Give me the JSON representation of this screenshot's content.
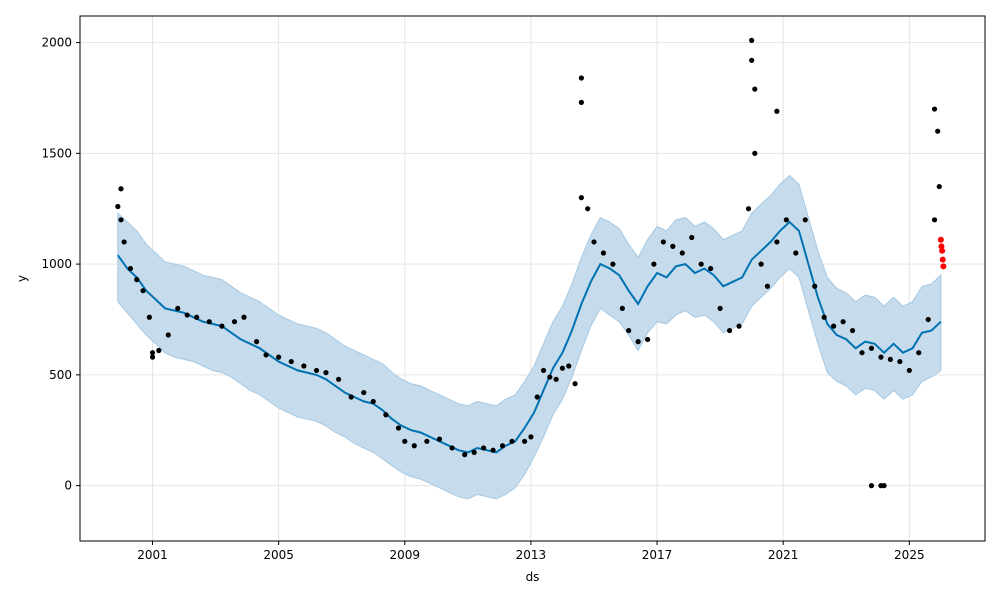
{
  "chart_data": {
    "type": "scatter",
    "xlabel": "ds",
    "ylabel": "y",
    "xlim": [
      1998.7,
      2027.4
    ],
    "ylim": [
      -250,
      2120
    ],
    "grid": true,
    "x_ticks": [
      2001,
      2005,
      2009,
      2013,
      2017,
      2021,
      2025
    ],
    "x_tick_labels": [
      "2001",
      "2005",
      "2009",
      "2013",
      "2017",
      "2021",
      "2025"
    ],
    "y_ticks": [
      0,
      500,
      1000,
      1500,
      2000
    ],
    "y_tick_labels": [
      "0",
      "500",
      "1000",
      "1500",
      "2000"
    ],
    "colors": {
      "observed": "#000000",
      "forecast_line": "#0072B2",
      "interval_fill": "#c6dcec",
      "interval_edge": "#a6c8e2",
      "highlight": "#ff0000",
      "grid": "#e5e5e5"
    },
    "series": [
      {
        "role": "forecast",
        "x": [
          1999.9,
          2000.2,
          2000.5,
          2000.8,
          2001.1,
          2001.4,
          2001.7,
          2002.0,
          2002.3,
          2002.6,
          2002.9,
          2003.2,
          2003.5,
          2003.8,
          2004.1,
          2004.4,
          2004.7,
          2005.0,
          2005.3,
          2005.6,
          2005.9,
          2006.2,
          2006.5,
          2006.8,
          2007.1,
          2007.4,
          2007.7,
          2008.0,
          2008.3,
          2008.6,
          2008.9,
          2009.2,
          2009.5,
          2009.8,
          2010.1,
          2010.4,
          2010.7,
          2011.0,
          2011.3,
          2011.6,
          2011.9,
          2012.2,
          2012.5,
          2012.8,
          2013.1,
          2013.4,
          2013.7,
          2014.0,
          2014.3,
          2014.6,
          2014.9,
          2015.2,
          2015.5,
          2015.8,
          2016.1,
          2016.4,
          2016.7,
          2017.0,
          2017.3,
          2017.6,
          2017.9,
          2018.2,
          2018.5,
          2018.8,
          2019.1,
          2019.4,
          2019.7,
          2020.0,
          2020.3,
          2020.6,
          2020.9,
          2021.2,
          2021.5,
          2021.8,
          2022.1,
          2022.4,
          2022.7,
          2023.0,
          2023.3,
          2023.6,
          2023.9,
          2024.2,
          2024.5,
          2024.8,
          2025.1,
          2025.4,
          2025.7,
          2026.0
        ],
        "yhat": [
          1040,
          980,
          940,
          880,
          840,
          800,
          790,
          780,
          760,
          740,
          730,
          720,
          690,
          660,
          640,
          620,
          590,
          560,
          540,
          520,
          510,
          500,
          480,
          450,
          420,
          400,
          380,
          370,
          340,
          300,
          270,
          250,
          240,
          220,
          200,
          180,
          160,
          150,
          170,
          160,
          150,
          180,
          200,
          260,
          330,
          430,
          530,
          600,
          700,
          820,
          920,
          1000,
          980,
          950,
          880,
          820,
          900,
          960,
          940,
          990,
          1000,
          960,
          980,
          950,
          900,
          920,
          940,
          1020,
          1060,
          1100,
          1150,
          1190,
          1150,
          1000,
          850,
          730,
          680,
          660,
          620,
          650,
          640,
          600,
          640,
          600,
          620,
          690,
          700,
          740
        ],
        "lower": [
          830,
          780,
          730,
          680,
          640,
          600,
          580,
          570,
          560,
          540,
          520,
          510,
          490,
          460,
          430,
          410,
          380,
          350,
          330,
          310,
          300,
          290,
          270,
          240,
          220,
          190,
          170,
          150,
          120,
          90,
          60,
          40,
          30,
          10,
          -10,
          -30,
          -50,
          -60,
          -40,
          -50,
          -60,
          -40,
          -10,
          50,
          130,
          220,
          320,
          390,
          490,
          610,
          720,
          800,
          770,
          740,
          680,
          610,
          690,
          740,
          730,
          770,
          790,
          760,
          770,
          740,
          690,
          710,
          730,
          810,
          850,
          890,
          940,
          980,
          940,
          790,
          640,
          510,
          470,
          450,
          410,
          440,
          430,
          390,
          430,
          390,
          410,
          470,
          490,
          520
        ],
        "upper": [
          1230,
          1190,
          1150,
          1090,
          1050,
          1010,
          1000,
          990,
          970,
          950,
          940,
          930,
          900,
          870,
          850,
          830,
          800,
          770,
          750,
          730,
          720,
          710,
          690,
          660,
          630,
          610,
          590,
          570,
          550,
          510,
          480,
          460,
          450,
          430,
          410,
          390,
          370,
          360,
          380,
          370,
          360,
          390,
          410,
          470,
          540,
          640,
          740,
          810,
          910,
          1030,
          1130,
          1210,
          1190,
          1160,
          1090,
          1030,
          1110,
          1170,
          1150,
          1200,
          1210,
          1170,
          1190,
          1160,
          1110,
          1130,
          1150,
          1230,
          1270,
          1310,
          1360,
          1400,
          1360,
          1210,
          1060,
          940,
          890,
          870,
          830,
          860,
          850,
          810,
          850,
          810,
          830,
          900,
          910,
          950
        ]
      },
      {
        "role": "observed",
        "x": [
          1999.9,
          2000.0,
          2000.1,
          2000.3,
          2000.5,
          2000.7,
          2000.9,
          2001.0,
          2001.2,
          2001.5,
          2001.8,
          2002.1,
          2002.4,
          2002.8,
          2003.2,
          2003.6,
          2003.9,
          2004.3,
          2004.6,
          2005.0,
          2005.4,
          2005.8,
          2006.2,
          2006.5,
          2006.9,
          2007.3,
          2007.7,
          2008.0,
          2008.4,
          2008.8,
          2009.0,
          2009.3,
          2009.7,
          2010.1,
          2010.5,
          2010.9,
          2011.2,
          2011.5,
          2011.8,
          2012.1,
          2012.4,
          2012.8,
          2013.0,
          2013.2,
          2013.4,
          2013.6,
          2013.8,
          2014.0,
          2014.2,
          2014.4,
          2014.6,
          2014.8,
          2015.0,
          2015.3,
          2015.6,
          2015.9,
          2016.1,
          2016.4,
          2016.7,
          2016.9,
          2017.2,
          2017.5,
          2017.8,
          2018.1,
          2018.4,
          2018.7,
          2019.0,
          2019.3,
          2019.6,
          2019.9,
          2020.1,
          2020.3,
          2020.5,
          2020.8,
          2021.1,
          2021.4,
          2021.7,
          2022.0,
          2022.3,
          2022.6,
          2022.9,
          2023.2,
          2023.5,
          2023.8,
          2024.1,
          2024.4,
          2024.7,
          2025.0,
          2025.3,
          2025.6,
          2025.8,
          2025.95
        ],
        "y": [
          1260,
          1200,
          1100,
          980,
          930,
          880,
          760,
          600,
          610,
          680,
          800,
          770,
          760,
          740,
          720,
          740,
          760,
          650,
          590,
          580,
          560,
          540,
          520,
          510,
          480,
          400,
          420,
          380,
          320,
          260,
          200,
          180,
          200,
          210,
          170,
          140,
          150,
          170,
          160,
          180,
          200,
          200,
          220,
          400,
          520,
          490,
          480,
          530,
          540,
          460,
          1300,
          1250,
          1100,
          1050,
          1000,
          800,
          700,
          650,
          660,
          1000,
          1100,
          1080,
          1050,
          1120,
          1000,
          980,
          800,
          700,
          720,
          1250,
          1500,
          1000,
          900,
          1100,
          1200,
          1050,
          1200,
          900,
          760,
          720,
          740,
          700,
          600,
          620,
          580,
          570,
          560,
          520,
          600,
          750,
          1200,
          1350
        ],
        "scatter_extra": [
          [
            2000.0,
            1340
          ],
          [
            2001.0,
            580
          ],
          [
            2014.6,
            1840
          ],
          [
            2014.6,
            1730
          ],
          [
            2020.0,
            2010
          ],
          [
            2020.0,
            1920
          ],
          [
            2020.1,
            1790
          ],
          [
            2020.8,
            1690
          ],
          [
            2025.8,
            1700
          ],
          [
            2025.9,
            1600
          ],
          [
            2023.8,
            0
          ],
          [
            2024.1,
            0
          ],
          [
            2024.2,
            0
          ]
        ]
      },
      {
        "role": "highlight",
        "x": [
          2026.0,
          2026.02,
          2026.04,
          2026.06,
          2026.08
        ],
        "y": [
          1110,
          1080,
          1060,
          1020,
          990
        ]
      }
    ]
  }
}
